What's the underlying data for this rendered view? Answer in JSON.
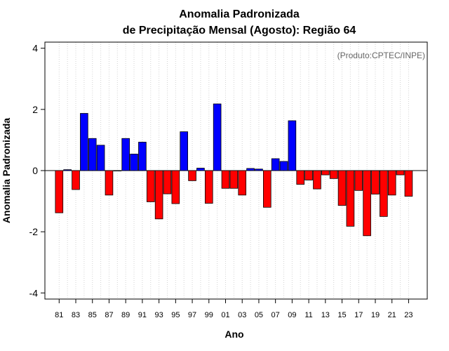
{
  "chart_data": {
    "type": "bar",
    "title_line1": "Anomalia Padronizada",
    "title_line2": "de Precipitação Mensal (Agosto): Região 64",
    "xlabel": "Ano",
    "ylabel": "Anomalia Padronizada",
    "credit": "(Produto:CPTEC/INPE)",
    "ylim": [
      -4.2,
      4.2
    ],
    "yticks": [
      -4,
      -2,
      0,
      2,
      4
    ],
    "ytick_labels": [
      "-4",
      "-2",
      "0",
      "2",
      "4"
    ],
    "categories": [
      "81",
      "82",
      "83",
      "84",
      "85",
      "86",
      "87",
      "88",
      "89",
      "90",
      "91",
      "92",
      "93",
      "94",
      "95",
      "96",
      "97",
      "98",
      "99",
      "00",
      "01",
      "02",
      "03",
      "04",
      "05",
      "06",
      "07",
      "08",
      "09",
      "10",
      "11",
      "12",
      "13",
      "14",
      "15",
      "16",
      "17",
      "18",
      "19",
      "20",
      "21",
      "22",
      "23"
    ],
    "xtick_labels": [
      "81",
      "83",
      "85",
      "87",
      "89",
      "91",
      "93",
      "95",
      "97",
      "99",
      "01",
      "03",
      "05",
      "07",
      "09",
      "11",
      "13",
      "15",
      "17",
      "19",
      "21",
      "23"
    ],
    "values": [
      -1.38,
      0.03,
      -0.62,
      1.87,
      1.05,
      0.83,
      -0.8,
      0.0,
      1.05,
      0.54,
      0.93,
      -1.02,
      -1.58,
      -0.76,
      -1.08,
      1.27,
      -0.33,
      0.08,
      -1.07,
      2.18,
      -0.58,
      -0.58,
      -0.8,
      0.07,
      0.05,
      -1.2,
      0.39,
      0.3,
      1.63,
      -0.45,
      -0.31,
      -0.6,
      -0.14,
      -0.26,
      -1.14,
      -1.82,
      -0.65,
      -2.13,
      -0.77,
      -1.5,
      -0.8,
      -0.14,
      -0.84
    ],
    "grid": true,
    "colors": {
      "positive": "#0000ff",
      "negative": "#ff0000",
      "zero_line": "#000000",
      "grid": "#d3d3d3"
    }
  }
}
